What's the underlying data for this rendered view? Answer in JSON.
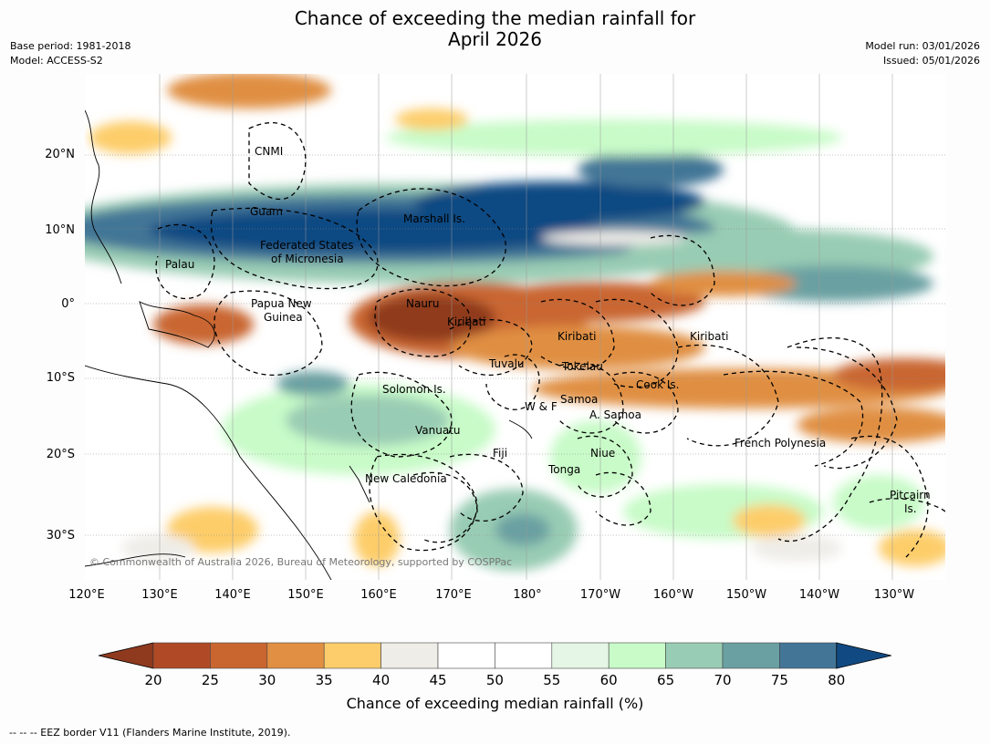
{
  "title_line1": "Chance of exceeding the median rainfall for",
  "title_line2": "April 2026",
  "meta_left": {
    "base_period": "Base period: 1981-2018",
    "model": "Model: ACCESS-S2"
  },
  "meta_right": {
    "model_run": "Model run: 03/01/2026",
    "issued": "Issued: 05/01/2026"
  },
  "lat_labels": [
    "20°N",
    "10°N",
    "0°",
    "10°S",
    "20°S",
    "30°S"
  ],
  "lon_labels": [
    "120°E",
    "130°E",
    "140°E",
    "150°E",
    "160°E",
    "170°E",
    "180°",
    "170°W",
    "160°W",
    "150°W",
    "140°W",
    "130°W"
  ],
  "regions": {
    "cnmi": "CNMI",
    "guam": "Guam",
    "marshall": "Marshall Is.",
    "fsm_1": "Federated States",
    "fsm_2": "of Micronesia",
    "palau": "Palau",
    "png_1": "Papua New",
    "png_2": "Guinea",
    "nauru": "Nauru",
    "kiribati_west": "Kiribati",
    "kiribati_mid": "Kiribati",
    "kiribati_east": "Kiribati",
    "tuvalu": "Tuvalu",
    "tokelau": "Tokelau",
    "cook": "Cook Is.",
    "solomon": "Solomon Is.",
    "samoa": "Samoa",
    "wf": "W & F",
    "asamoa": "A. Samoa",
    "vanuatu": "Vanuatu",
    "fiji": "Fiji",
    "niue": "Niue",
    "tonga": "Tonga",
    "french_polynesia": "French Polynesia",
    "new_caledonia": "New Caledonia",
    "pitcairn_1": "Pitcairn",
    "pitcairn_2": "Is."
  },
  "copyright": "© Commonwealth of Australia 2026, Bureau of Meteorology, supported by COSPPac",
  "colorbar": {
    "ticks": [
      "20",
      "25",
      "30",
      "35",
      "40",
      "45",
      "50",
      "55",
      "60",
      "65",
      "70",
      "75",
      "80"
    ],
    "colors": [
      "#8f3a1f",
      "#b04a26",
      "#c96630",
      "#e08f43",
      "#fdcd6b",
      "#efede8",
      "#ffffff",
      "#ffffff",
      "#e6f6e6",
      "#c8fbc8",
      "#99ccb4",
      "#6aa0a2",
      "#437696",
      "#114a82"
    ],
    "label": "Chance of exceeding median rainfall (%)"
  },
  "footnote": "--  --  -- EEZ border V11 (Flanders Marine Institute, 2019)."
}
